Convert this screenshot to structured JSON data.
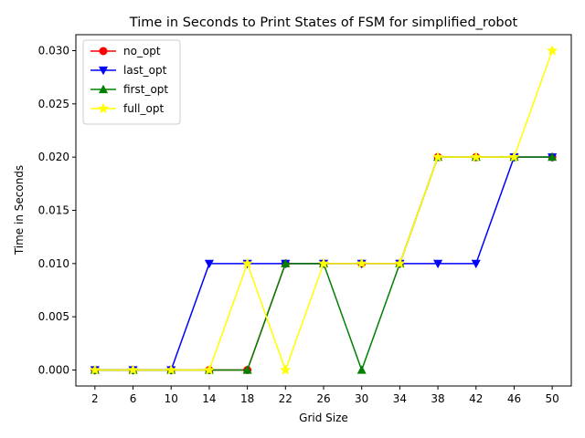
{
  "chart_data": {
    "type": "line",
    "title": "Time in Seconds to Print States of FSM for simplified_robot",
    "xlabel": "Grid Size",
    "ylabel": "Time in Seconds",
    "x": [
      2,
      6,
      10,
      14,
      18,
      22,
      26,
      30,
      34,
      38,
      42,
      46,
      50
    ],
    "xticks": [
      "2",
      "6",
      "10",
      "14",
      "18",
      "22",
      "26",
      "30",
      "34",
      "38",
      "42",
      "46",
      "50"
    ],
    "yticks": [
      "0.000",
      "0.005",
      "0.010",
      "0.015",
      "0.020",
      "0.025",
      "0.030"
    ],
    "ylim": [
      -0.0015,
      0.0315
    ],
    "legend_position": "upper-left",
    "grid": false,
    "series": [
      {
        "name": "no_opt",
        "color": "#ff0000",
        "marker": "circle",
        "values": [
          0,
          0,
          0,
          0,
          0,
          0.01,
          0.01,
          0.01,
          0.01,
          0.02,
          0.02,
          0.02,
          0.02
        ]
      },
      {
        "name": "last_opt",
        "color": "#0000ff",
        "marker": "triangle-down",
        "values": [
          0,
          0,
          0,
          0.01,
          0.01,
          0.01,
          0.01,
          0.01,
          0.01,
          0.01,
          0.01,
          0.02,
          0.02
        ]
      },
      {
        "name": "first_opt",
        "color": "#008000",
        "marker": "triangle-up",
        "values": [
          0,
          0,
          0,
          0,
          0,
          0.01,
          0.01,
          0,
          0.01,
          0.02,
          0.02,
          0.02,
          0.02
        ]
      },
      {
        "name": "full_opt",
        "color": "#ffff00",
        "marker": "star",
        "values": [
          0,
          0,
          0,
          0,
          0.01,
          0,
          0.01,
          0.01,
          0.01,
          0.02,
          0.02,
          0.02,
          0.03
        ]
      }
    ]
  }
}
